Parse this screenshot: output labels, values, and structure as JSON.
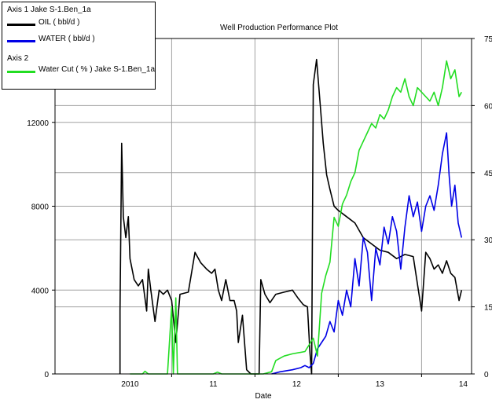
{
  "chart_data": {
    "type": "line",
    "title": "Well Production Performance Plot",
    "xlabel": "Date",
    "x_ticks": [
      "2010",
      "11",
      "12",
      "13",
      "14"
    ],
    "y_left_ticks": [
      "0",
      "4000",
      "8000",
      "12000"
    ],
    "y_left_range": [
      0,
      16000
    ],
    "y_right_ticks": [
      "0",
      "15",
      "30",
      "45",
      "60",
      "75"
    ],
    "y_right_range": [
      0,
      75
    ],
    "x_range": [
      2009.6,
      2014.6
    ],
    "grid": true,
    "legend": {
      "placement": "top-left",
      "axis1_label": "Axis 1  Jake S-1.Ben_1a",
      "axis2_label": "Axis 2"
    },
    "series": [
      {
        "name": "OIL ( bbl/d )",
        "axis": 1,
        "color": "#000000",
        "points": [
          [
            2010.38,
            0
          ],
          [
            2010.38,
            3000
          ],
          [
            2010.4,
            11000
          ],
          [
            2010.42,
            7500
          ],
          [
            2010.45,
            6500
          ],
          [
            2010.48,
            7500
          ],
          [
            2010.5,
            5500
          ],
          [
            2010.55,
            4500
          ],
          [
            2010.6,
            4200
          ],
          [
            2010.65,
            4500
          ],
          [
            2010.7,
            3000
          ],
          [
            2010.72,
            5000
          ],
          [
            2010.75,
            4000
          ],
          [
            2010.8,
            2500
          ],
          [
            2010.85,
            4000
          ],
          [
            2010.9,
            3800
          ],
          [
            2010.95,
            4000
          ],
          [
            2011.0,
            3500
          ],
          [
            2011.05,
            1500
          ],
          [
            2011.1,
            3800
          ],
          [
            2011.2,
            3900
          ],
          [
            2011.28,
            5800
          ],
          [
            2011.35,
            5300
          ],
          [
            2011.42,
            5000
          ],
          [
            2011.48,
            4800
          ],
          [
            2011.52,
            5000
          ],
          [
            2011.56,
            4000
          ],
          [
            2011.6,
            3500
          ],
          [
            2011.65,
            4500
          ],
          [
            2011.7,
            3500
          ],
          [
            2011.75,
            3500
          ],
          [
            2011.78,
            3000
          ],
          [
            2011.8,
            1500
          ],
          [
            2011.85,
            2800
          ],
          [
            2011.9,
            200
          ],
          [
            2011.95,
            0
          ],
          [
            2012.05,
            0
          ],
          [
            2012.07,
            4500
          ],
          [
            2012.12,
            3800
          ],
          [
            2012.18,
            3400
          ],
          [
            2012.25,
            3800
          ],
          [
            2012.35,
            3900
          ],
          [
            2012.45,
            4000
          ],
          [
            2012.52,
            3600
          ],
          [
            2012.58,
            3300
          ],
          [
            2012.63,
            3200
          ],
          [
            2012.66,
            1000
          ],
          [
            2012.68,
            0
          ],
          [
            2012.7,
            13800
          ],
          [
            2012.74,
            15000
          ],
          [
            2012.78,
            13000
          ],
          [
            2012.82,
            11000
          ],
          [
            2012.86,
            9500
          ],
          [
            2012.9,
            8800
          ],
          [
            2012.95,
            8000
          ],
          [
            2013.0,
            7800
          ],
          [
            2013.1,
            7500
          ],
          [
            2013.2,
            7200
          ],
          [
            2013.3,
            6500
          ],
          [
            2013.4,
            6200
          ],
          [
            2013.5,
            5900
          ],
          [
            2013.6,
            5800
          ],
          [
            2013.7,
            5500
          ],
          [
            2013.8,
            5700
          ],
          [
            2013.9,
            5600
          ],
          [
            2014.0,
            3000
          ],
          [
            2014.05,
            5800
          ],
          [
            2014.1,
            5500
          ],
          [
            2014.15,
            5000
          ],
          [
            2014.2,
            5200
          ],
          [
            2014.25,
            4800
          ],
          [
            2014.3,
            5400
          ],
          [
            2014.35,
            4800
          ],
          [
            2014.4,
            4600
          ],
          [
            2014.45,
            3500
          ],
          [
            2014.48,
            4000
          ]
        ]
      },
      {
        "name": "WATER ( bbl/d )",
        "axis": 1,
        "color": "#0000e6",
        "points": [
          [
            2012.2,
            0
          ],
          [
            2012.3,
            100
          ],
          [
            2012.45,
            200
          ],
          [
            2012.55,
            300
          ],
          [
            2012.6,
            400
          ],
          [
            2012.65,
            300
          ],
          [
            2012.7,
            500
          ],
          [
            2012.75,
            1200
          ],
          [
            2012.8,
            1500
          ],
          [
            2012.85,
            1800
          ],
          [
            2012.9,
            2500
          ],
          [
            2012.95,
            2000
          ],
          [
            2013.0,
            3500
          ],
          [
            2013.05,
            2800
          ],
          [
            2013.1,
            4000
          ],
          [
            2013.15,
            3200
          ],
          [
            2013.2,
            5500
          ],
          [
            2013.25,
            4200
          ],
          [
            2013.3,
            6500
          ],
          [
            2013.35,
            5800
          ],
          [
            2013.4,
            3500
          ],
          [
            2013.45,
            6000
          ],
          [
            2013.5,
            5200
          ],
          [
            2013.55,
            7000
          ],
          [
            2013.6,
            6200
          ],
          [
            2013.65,
            7500
          ],
          [
            2013.7,
            6800
          ],
          [
            2013.75,
            5000
          ],
          [
            2013.8,
            7000
          ],
          [
            2013.85,
            8500
          ],
          [
            2013.9,
            7500
          ],
          [
            2013.95,
            8200
          ],
          [
            2014.0,
            6800
          ],
          [
            2014.05,
            8000
          ],
          [
            2014.1,
            8500
          ],
          [
            2014.15,
            7800
          ],
          [
            2014.2,
            9000
          ],
          [
            2014.25,
            10500
          ],
          [
            2014.3,
            11500
          ],
          [
            2014.33,
            9500
          ],
          [
            2014.36,
            8000
          ],
          [
            2014.4,
            9000
          ],
          [
            2014.44,
            7200
          ],
          [
            2014.48,
            6500
          ]
        ]
      },
      {
        "name": "Water Cut ( % ) Jake S-1.Ben_1a",
        "axis": 2,
        "color": "#22dd22",
        "points": [
          [
            2010.5,
            0
          ],
          [
            2010.65,
            0
          ],
          [
            2010.68,
            0.6
          ],
          [
            2010.72,
            0
          ],
          [
            2010.95,
            0
          ],
          [
            2011.0,
            15
          ],
          [
            2011.02,
            0
          ],
          [
            2011.05,
            17
          ],
          [
            2011.07,
            0
          ],
          [
            2011.5,
            0
          ],
          [
            2011.55,
            0.4
          ],
          [
            2011.6,
            0
          ],
          [
            2012.1,
            0
          ],
          [
            2012.2,
            0.5
          ],
          [
            2012.25,
            3
          ],
          [
            2012.35,
            4
          ],
          [
            2012.45,
            4.5
          ],
          [
            2012.6,
            5
          ],
          [
            2012.7,
            8
          ],
          [
            2012.75,
            4
          ],
          [
            2012.8,
            18
          ],
          [
            2012.85,
            22
          ],
          [
            2012.9,
            25
          ],
          [
            2012.95,
            35
          ],
          [
            2013.0,
            33
          ],
          [
            2013.05,
            38
          ],
          [
            2013.1,
            40
          ],
          [
            2013.15,
            43
          ],
          [
            2013.2,
            45
          ],
          [
            2013.25,
            50
          ],
          [
            2013.3,
            52
          ],
          [
            2013.35,
            54
          ],
          [
            2013.4,
            56
          ],
          [
            2013.45,
            55
          ],
          [
            2013.5,
            58
          ],
          [
            2013.55,
            57
          ],
          [
            2013.6,
            59
          ],
          [
            2013.65,
            62
          ],
          [
            2013.7,
            64
          ],
          [
            2013.75,
            63
          ],
          [
            2013.8,
            66
          ],
          [
            2013.85,
            62
          ],
          [
            2013.9,
            60
          ],
          [
            2013.95,
            64
          ],
          [
            2014.0,
            63
          ],
          [
            2014.05,
            62
          ],
          [
            2014.1,
            61
          ],
          [
            2014.15,
            63
          ],
          [
            2014.2,
            60
          ],
          [
            2014.25,
            64
          ],
          [
            2014.3,
            70
          ],
          [
            2014.35,
            66
          ],
          [
            2014.4,
            68
          ],
          [
            2014.45,
            62
          ],
          [
            2014.48,
            63
          ]
        ]
      }
    ]
  }
}
